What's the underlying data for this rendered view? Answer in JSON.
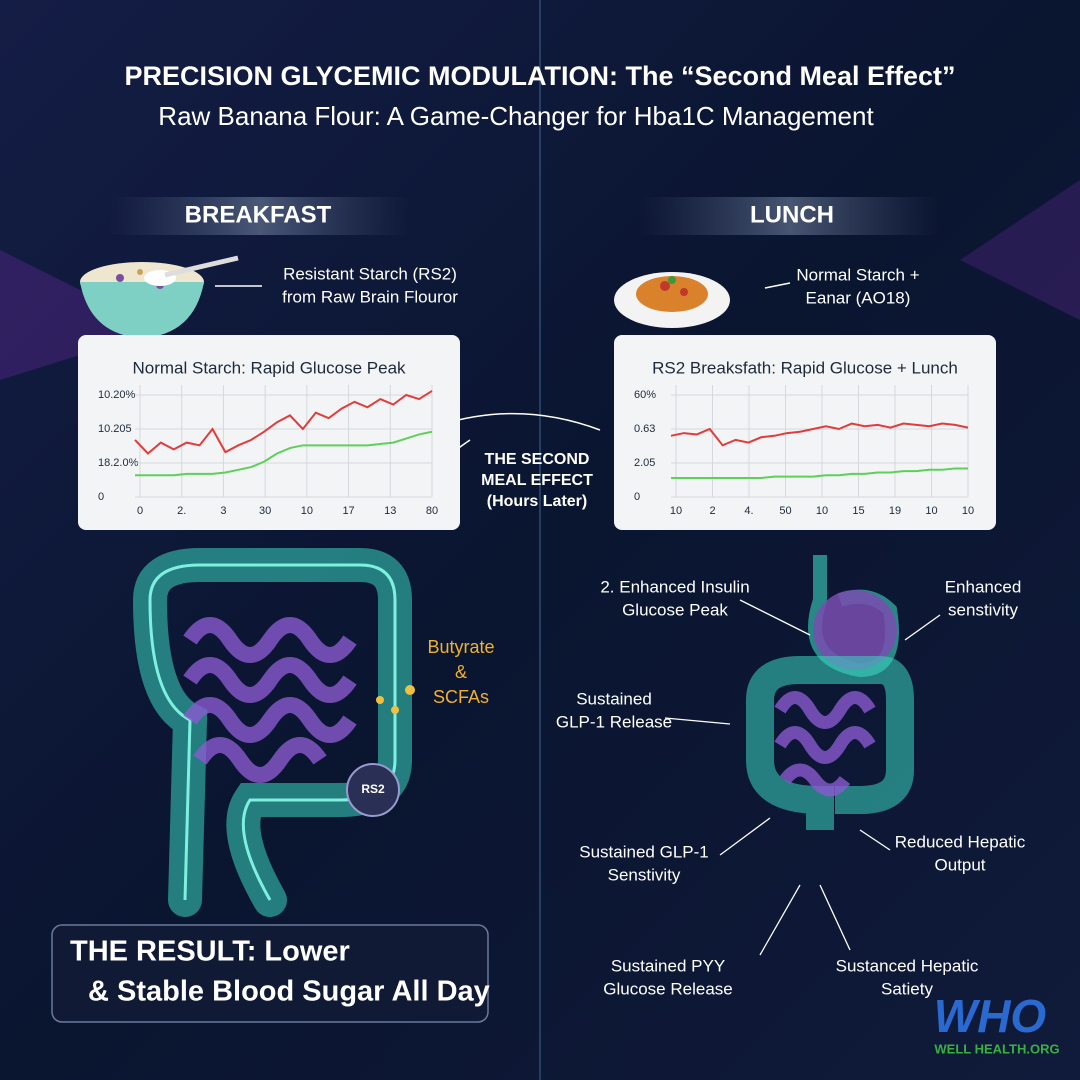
{
  "header": {
    "title": "PRECISION GLYCEMIC MODULATION: The “Second Meal Effect”",
    "subtitle": "Raw Banana Flour: A Game-Changer for Hba1C Management"
  },
  "breakfast": {
    "label": "BREAKFAST",
    "note": [
      "Resistant Starch (RS2)",
      "from Raw Brain Flouror"
    ]
  },
  "lunch": {
    "label": "LUNCH",
    "note": [
      "Normal Starch +",
      "Eanar (AO18)"
    ]
  },
  "charts": [
    {
      "type": "line",
      "title": "Normal Starch: Rapid Glucose Peak",
      "ylim": [
        0,
        100
      ],
      "yticks": [
        {
          "value": 75,
          "label": "10.20%"
        },
        {
          "value": 50,
          "label": "10.205"
        },
        {
          "value": 25,
          "label": "18.2.0%"
        },
        0
      ],
      "xlabels": [
        "0",
        "2.",
        "3",
        "30",
        "10",
        "17",
        "13",
        "80"
      ],
      "grid": true,
      "series": [
        {
          "color": "#e23b3b",
          "values": [
            42,
            32,
            40,
            35,
            40,
            38,
            50,
            33,
            38,
            42,
            48,
            55,
            60,
            50,
            62,
            58,
            65,
            70,
            66,
            72,
            68,
            75,
            72,
            78
          ]
        },
        {
          "color": "#5ed05a",
          "values": [
            16,
            16,
            16,
            16,
            17,
            17,
            17,
            18,
            20,
            22,
            26,
            32,
            36,
            38,
            38,
            38,
            38,
            38,
            38,
            39,
            40,
            43,
            46,
            48
          ]
        }
      ]
    },
    {
      "type": "line",
      "title": "RS2 Breaksfath: Rapid Glucose + Lunch",
      "ylim": [
        0,
        100
      ],
      "yticks": [
        {
          "value": 75,
          "label": "60%"
        },
        {
          "value": 50,
          "label": "0.63"
        },
        {
          "value": 25,
          "label": "2.05"
        },
        0
      ],
      "xlabels": [
        "10",
        "2",
        "4.",
        "50",
        "10",
        "15",
        "19",
        "10",
        "10"
      ],
      "grid": true,
      "series": [
        {
          "color": "#e23b3b",
          "values": [
            45,
            47,
            46,
            50,
            38,
            42,
            40,
            44,
            45,
            47,
            48,
            50,
            52,
            50,
            54,
            52,
            53,
            51,
            54,
            53,
            52,
            54,
            53,
            51
          ]
        },
        {
          "color": "#5ed05a",
          "values": [
            14,
            14,
            14,
            14,
            14,
            14,
            14,
            14,
            15,
            15,
            15,
            15,
            16,
            16,
            17,
            17,
            18,
            18,
            19,
            19,
            20,
            20,
            21,
            21
          ]
        }
      ]
    }
  ],
  "effect": [
    "THE SECOND",
    "MEAL EFFECT",
    "(Hours Later)"
  ],
  "gut": {
    "butyrate": [
      "Butyrate",
      "&",
      "SCFAs"
    ],
    "badge": "RS2"
  },
  "annotations": [
    [
      "2. Enhanced Insulin",
      "Glucose Peak"
    ],
    [
      "Enhanced",
      "senstivity"
    ],
    [
      "Sustained",
      "GLP-1 Release"
    ],
    [
      "Sustained GLP-1",
      "Senstivity"
    ],
    [
      "Reduced Hepatic",
      "Output"
    ],
    [
      "Sustained PYY",
      "Glucose Release"
    ],
    [
      "Sustanced Hepatic",
      "Satiety"
    ]
  ],
  "result": [
    "THE RESULT: Lower",
    "& Stable Blood Sugar All Day"
  ],
  "logo": {
    "mark": "WHO",
    "name": "WELL HEALTH.ORG"
  }
}
